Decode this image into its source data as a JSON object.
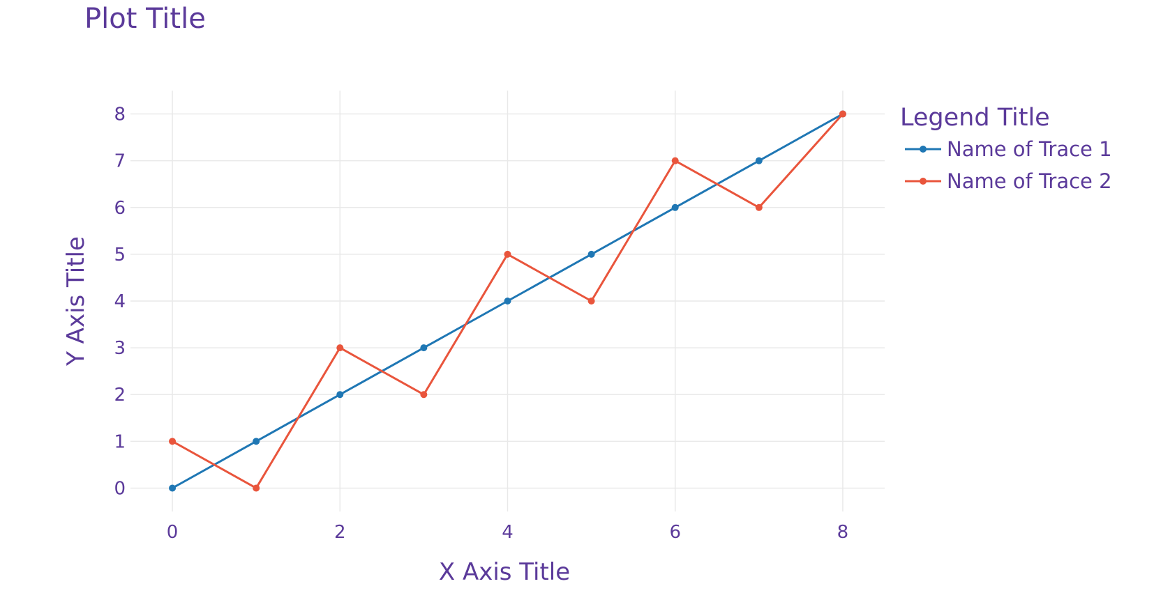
{
  "chart_data": {
    "type": "line",
    "title": "Plot Title",
    "xlabel": "X Axis Title",
    "ylabel": "Y Axis Title",
    "xlim": [
      -0.5,
      8.5
    ],
    "ylim": [
      -0.5,
      8.5
    ],
    "xticks": [
      0,
      2,
      4,
      6,
      8
    ],
    "yticks": [
      0,
      1,
      2,
      3,
      4,
      5,
      6,
      7,
      8
    ],
    "grid": true,
    "legend": {
      "title": "Legend Title",
      "position": "top-right outside plot"
    },
    "x": [
      0,
      1,
      2,
      3,
      4,
      5,
      6,
      7,
      8
    ],
    "series": [
      {
        "name": "Name of Trace 1",
        "color": "#1f77b4",
        "values": [
          0,
          1,
          2,
          3,
          4,
          5,
          6,
          7,
          8
        ]
      },
      {
        "name": "Name of Trace 2",
        "color": "#e9553c",
        "values": [
          1,
          0,
          3,
          2,
          5,
          4,
          7,
          6,
          8
        ]
      }
    ]
  },
  "style": {
    "text_color": "#5b3a9a",
    "grid_color": "#e9e9e9"
  }
}
